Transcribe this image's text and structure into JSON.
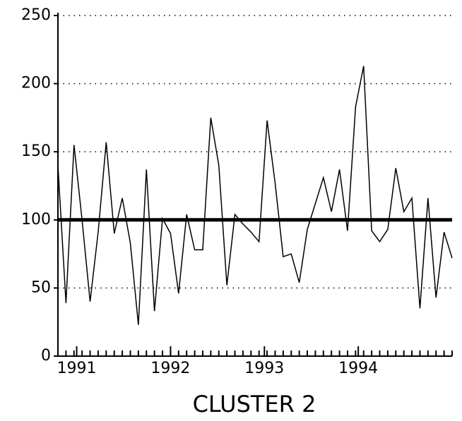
{
  "chart_data": {
    "type": "line",
    "title": "CLUSTER 2",
    "series": [
      {
        "color": "#000000",
        "values": [
          140,
          39,
          155,
          100,
          40,
          91,
          157,
          90,
          116,
          83,
          23,
          137,
          33,
          101,
          90,
          46,
          104,
          78,
          78,
          175,
          140,
          52,
          104,
          97,
          91,
          84,
          173,
          127,
          73,
          75,
          54,
          93,
          112,
          131,
          106,
          137,
          92,
          183,
          213,
          92,
          84,
          93,
          138,
          106,
          116,
          35,
          116,
          43,
          91,
          72
        ]
      }
    ],
    "reference_line": 100,
    "xlim": [
      1990.8,
      1995
    ],
    "xticks": [
      1991,
      1992,
      1993,
      1994
    ],
    "ylim": [
      0,
      250
    ],
    "yticks": [
      0,
      50,
      100,
      150,
      200,
      250
    ],
    "grid": true
  }
}
